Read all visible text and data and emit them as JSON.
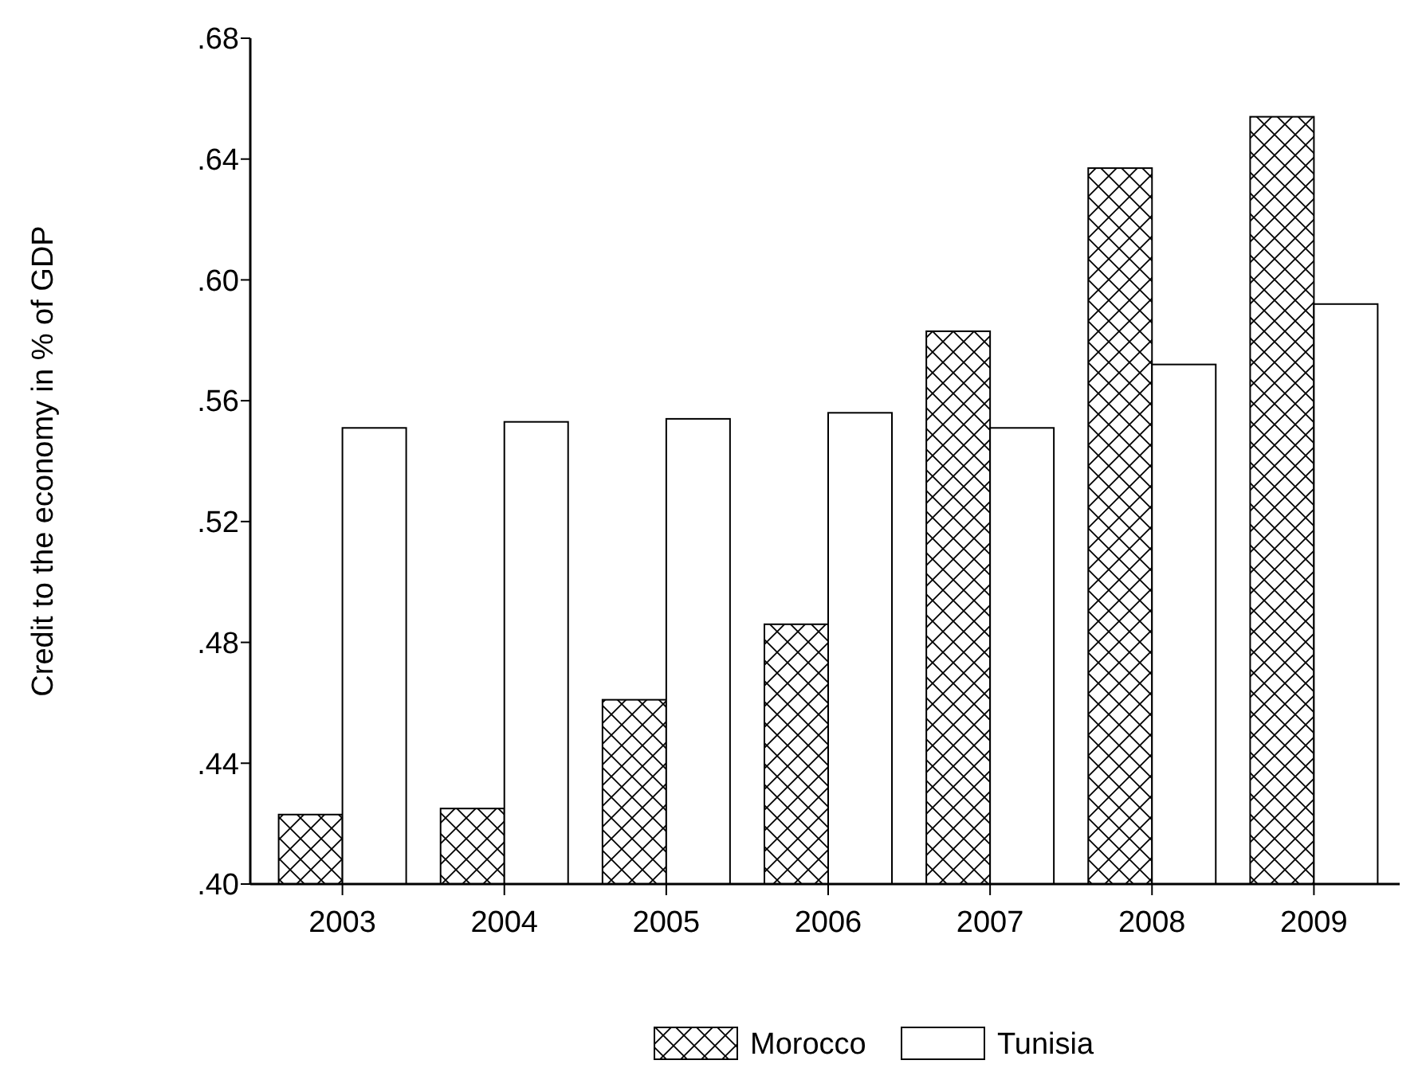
{
  "chart_data": {
    "type": "bar",
    "ylabel": "Credit to the economy in % of GDP",
    "categories": [
      "2003",
      "2004",
      "2005",
      "2006",
      "2007",
      "2008",
      "2009"
    ],
    "series": [
      {
        "name": "Morocco",
        "color": "#000000",
        "values": [
          0.423,
          0.425,
          0.461,
          0.486,
          0.583,
          0.637,
          0.654
        ]
      },
      {
        "name": "Tunisia",
        "color": "#ffffff",
        "values": [
          0.551,
          0.553,
          0.554,
          0.556,
          0.551,
          0.572,
          0.592
        ]
      }
    ],
    "ylim": [
      0.4,
      0.68
    ],
    "yticks": [
      {
        "value": 0.4,
        "label": ".40"
      },
      {
        "value": 0.44,
        "label": ".44"
      },
      {
        "value": 0.48,
        "label": ".48"
      },
      {
        "value": 0.52,
        "label": ".52"
      },
      {
        "value": 0.56,
        "label": ".56"
      },
      {
        "value": 0.6,
        "label": ".60"
      },
      {
        "value": 0.64,
        "label": ".64"
      },
      {
        "value": 0.68,
        "label": ".68"
      }
    ],
    "grid": false,
    "legend": "bottom"
  }
}
